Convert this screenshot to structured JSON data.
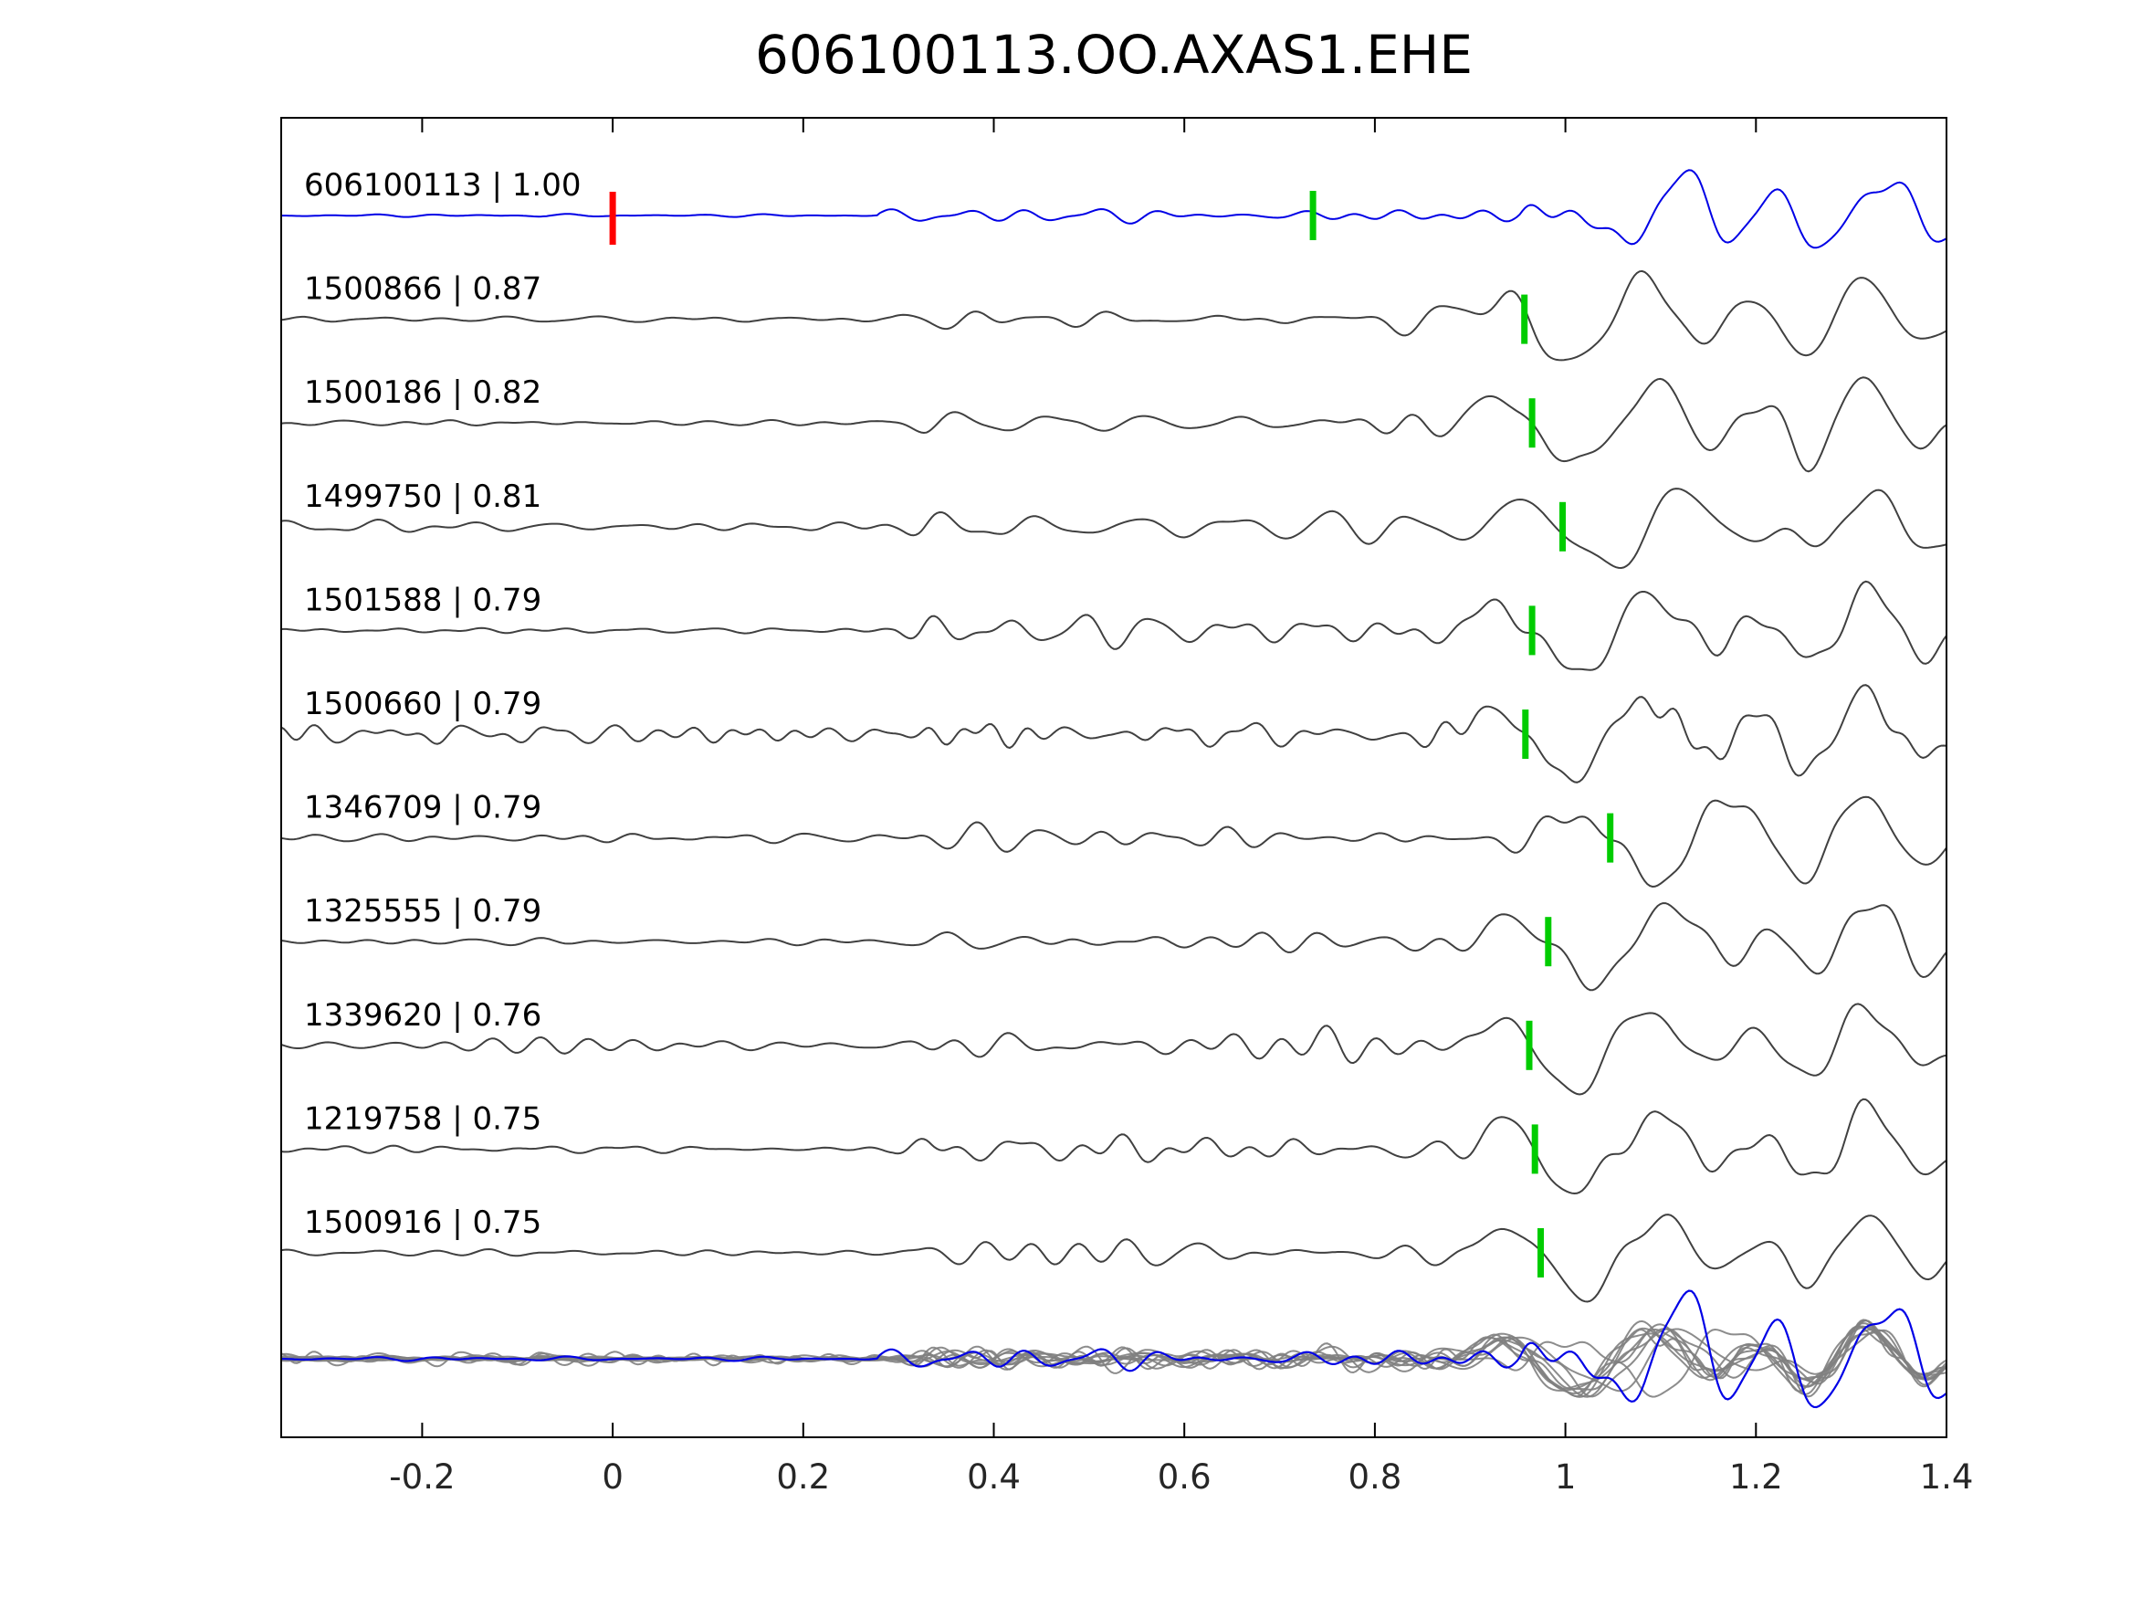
{
  "figure": {
    "title": "606100113.OO.AXAS1.EHE"
  },
  "chart_data": {
    "type": "line",
    "title": "606100113.OO.AXAS1.EHE",
    "xlabel": "",
    "ylabel": "",
    "xlim": [
      -0.348,
      1.4
    ],
    "x_tick_values": [
      -0.2,
      0,
      0.2,
      0.4,
      0.6,
      0.8,
      1,
      1.2,
      1.4
    ],
    "x_tick_labels": [
      "-0.2",
      "0",
      "0.2",
      "0.4",
      "0.6",
      "0.8",
      "1",
      "1.2",
      "1.4"
    ],
    "grid": false,
    "legend": "none",
    "colors": {
      "template_trace": "#0000e6",
      "detection_trace": "#404040",
      "overlay_trace": "#808080",
      "pick_marker": "#00cc00",
      "template_origin_marker": "#ff0000",
      "axes": "#000000",
      "background": "#ffffff"
    },
    "rows": [
      {
        "label": "606100113 | 1.00",
        "id": "606100113",
        "correlation": 1.0,
        "kind": "template",
        "origin_marker_time": 0.0,
        "pick_time": 0.735,
        "noise_level": 0.05
      },
      {
        "label": "1500866 | 0.87",
        "id": "1500866",
        "correlation": 0.87,
        "kind": "detection",
        "pick_time": 0.957,
        "noise_level": 0.1
      },
      {
        "label": "1500186 | 0.82",
        "id": "1500186",
        "correlation": 0.82,
        "kind": "detection",
        "pick_time": 0.965,
        "noise_level": 0.13
      },
      {
        "label": "1499750 | 0.81",
        "id": "1499750",
        "correlation": 0.81,
        "kind": "detection",
        "pick_time": 0.997,
        "noise_level": 0.19
      },
      {
        "label": "1501588 | 0.79",
        "id": "1501588",
        "correlation": 0.79,
        "kind": "detection",
        "pick_time": 0.965,
        "noise_level": 0.1
      },
      {
        "label": "1500660 | 0.79",
        "id": "1500660",
        "correlation": 0.79,
        "kind": "detection",
        "pick_time": 0.958,
        "noise_level": 0.34
      },
      {
        "label": "1346709 | 0.79",
        "id": "1346709",
        "correlation": 0.79,
        "kind": "detection",
        "pick_time": 1.047,
        "noise_level": 0.17
      },
      {
        "label": "1325555 | 0.79",
        "id": "1325555",
        "correlation": 0.79,
        "kind": "detection",
        "pick_time": 0.982,
        "noise_level": 0.12
      },
      {
        "label": "1339620 | 0.76",
        "id": "1339620",
        "correlation": 0.76,
        "kind": "detection",
        "pick_time": 0.962,
        "noise_level": 0.24
      },
      {
        "label": "1219758 | 0.75",
        "id": "1219758",
        "correlation": 0.75,
        "kind": "detection",
        "pick_time": 0.968,
        "noise_level": 0.12
      },
      {
        "label": "1500916 | 0.75",
        "id": "1500916",
        "correlation": 0.75,
        "kind": "detection",
        "pick_time": 0.974,
        "noise_level": 0.1
      }
    ],
    "overlay_row": {
      "description": "all detection traces stacked together with template trace overlaid"
    }
  }
}
